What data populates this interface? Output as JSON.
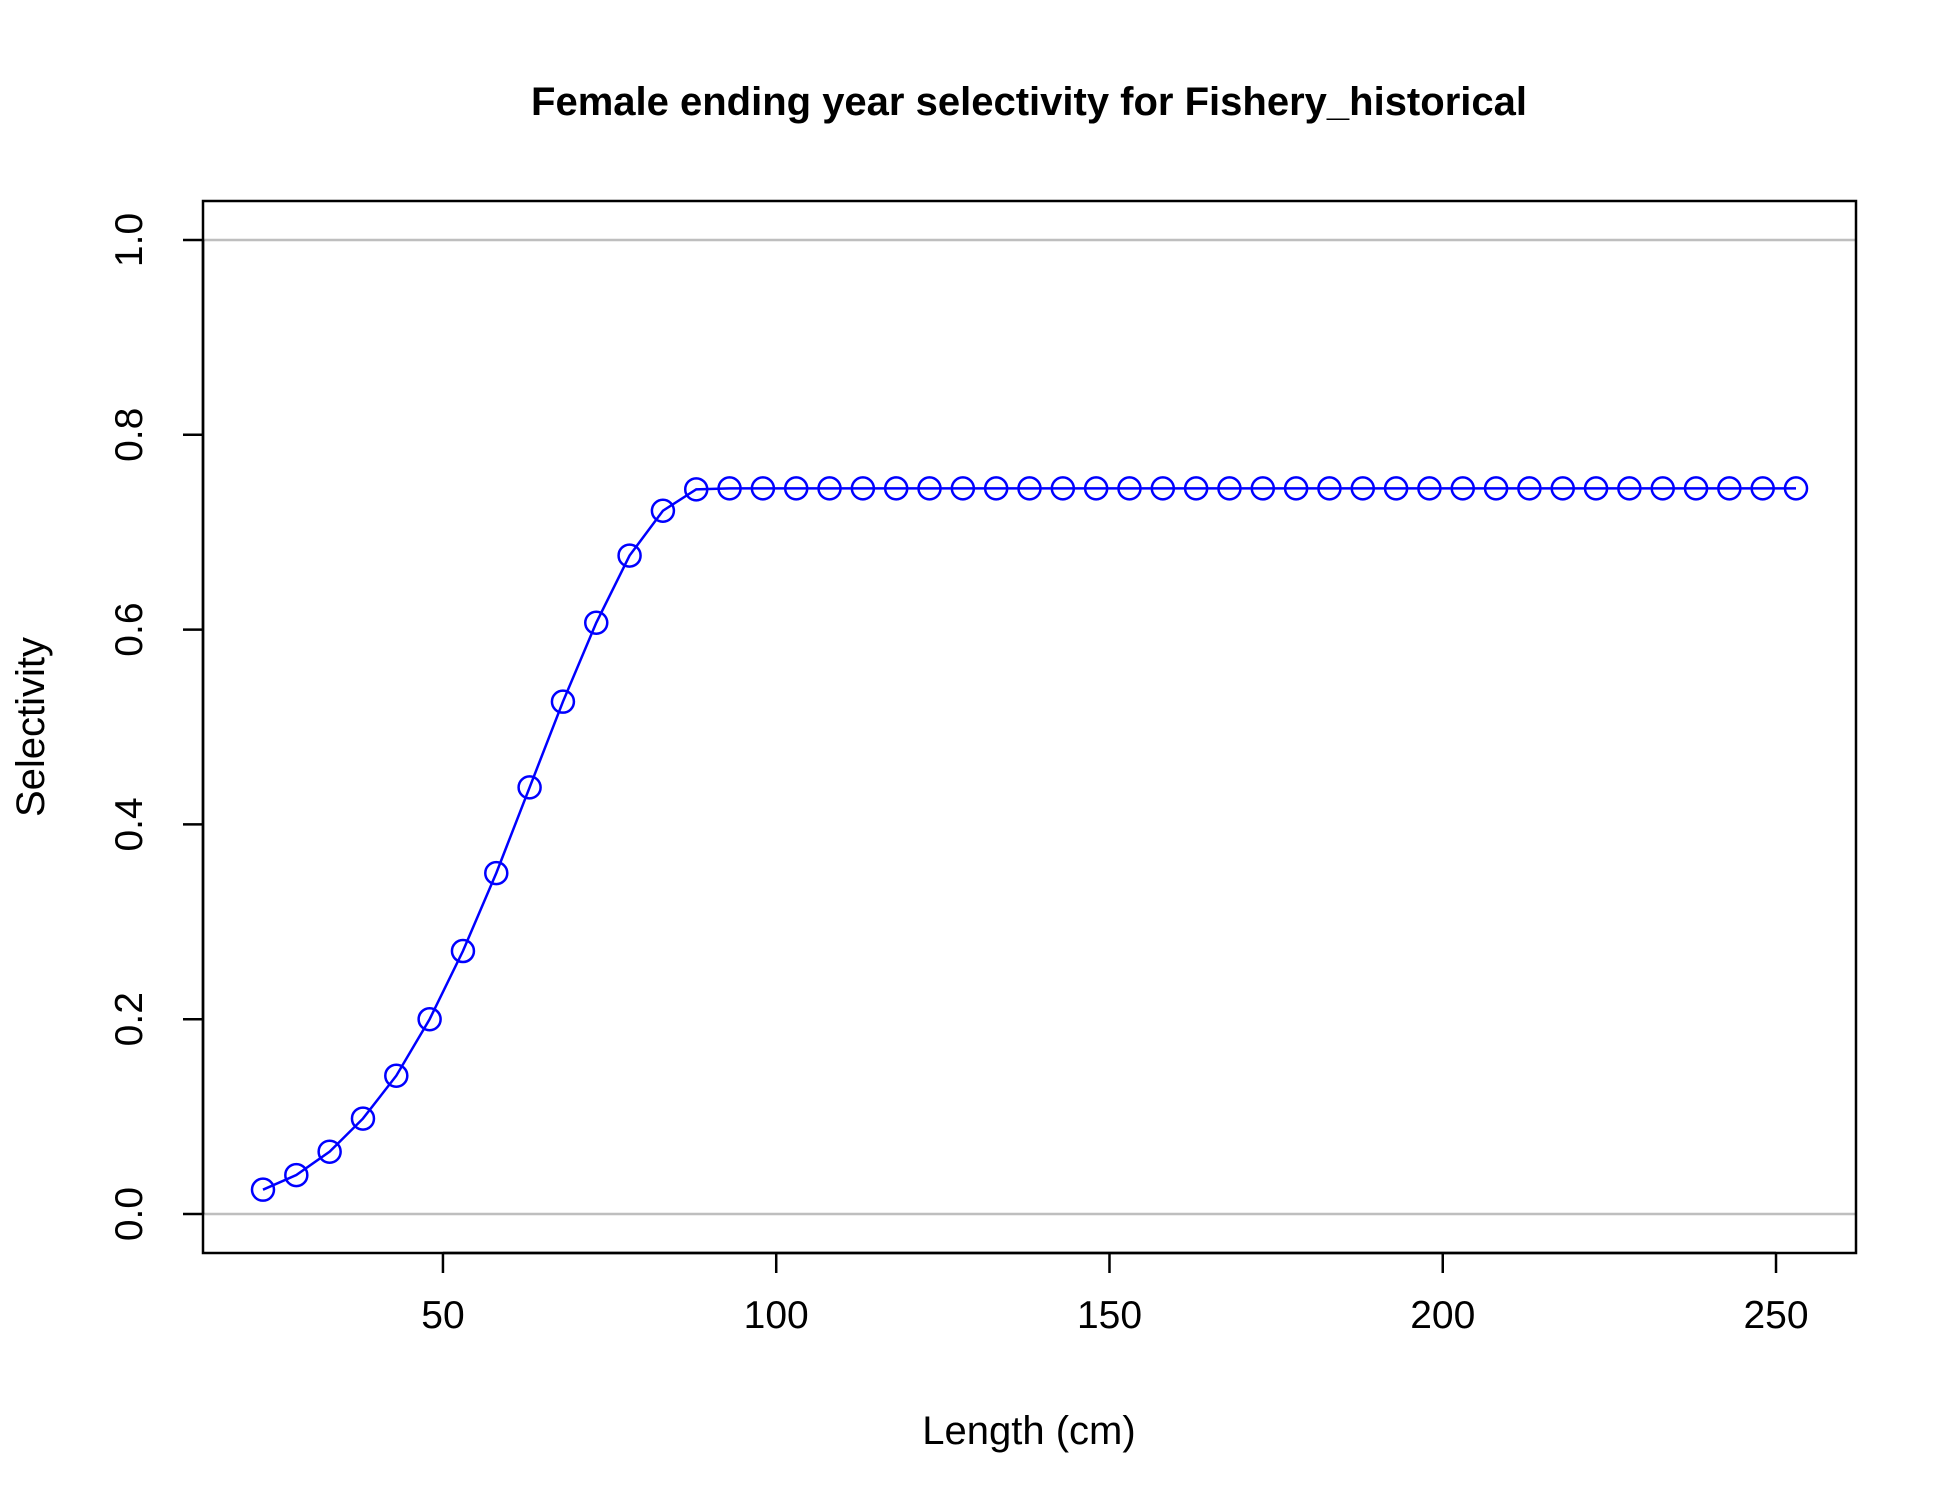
{
  "chart_data": {
    "type": "line",
    "title": "Female ending year selectivity for Fishery_historical",
    "xlabel": "Length (cm)",
    "ylabel": "Selectivity",
    "xlim": [
      14,
      262
    ],
    "ylim": [
      -0.04,
      1.04
    ],
    "x_ticks": [
      50,
      100,
      150,
      200,
      250
    ],
    "y_ticks": [
      0.0,
      0.2,
      0.4,
      0.6,
      0.8,
      1.0
    ],
    "x_tick_labels": [
      "50",
      "100",
      "150",
      "200",
      "250"
    ],
    "y_tick_labels": [
      "0.0",
      "0.2",
      "0.4",
      "0.6",
      "0.8",
      "1.0"
    ],
    "reference_lines_y": [
      0,
      1
    ],
    "grid": false,
    "colors": {
      "series": "#0000FF",
      "reference": "#BEBEBE",
      "axes": "#000000"
    },
    "series": [
      {
        "marker": "open-circle",
        "x": [
          23,
          28,
          33,
          38,
          43,
          48,
          53,
          58,
          63,
          68,
          73,
          78,
          83,
          88,
          93,
          98,
          103,
          108,
          113,
          118,
          123,
          128,
          133,
          138,
          143,
          148,
          153,
          158,
          163,
          168,
          173,
          178,
          183,
          188,
          193,
          198,
          203,
          208,
          213,
          218,
          223,
          228,
          233,
          238,
          243,
          248,
          253
        ],
        "y": [
          0.025,
          0.04,
          0.064,
          0.098,
          0.142,
          0.2,
          0.27,
          0.35,
          0.438,
          0.526,
          0.607,
          0.676,
          0.722,
          0.744,
          0.745,
          0.745,
          0.745,
          0.745,
          0.745,
          0.745,
          0.745,
          0.745,
          0.745,
          0.745,
          0.745,
          0.745,
          0.745,
          0.745,
          0.745,
          0.745,
          0.745,
          0.745,
          0.745,
          0.745,
          0.745,
          0.745,
          0.745,
          0.745,
          0.745,
          0.745,
          0.745,
          0.745,
          0.745,
          0.745,
          0.745,
          0.745,
          0.745
        ]
      }
    ]
  }
}
